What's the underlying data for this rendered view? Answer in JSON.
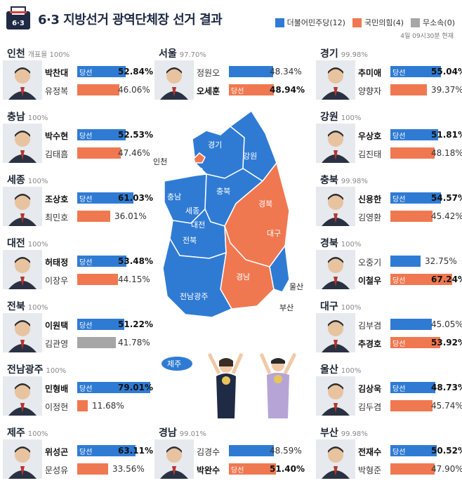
{
  "header": {
    "title": "6·3 지방선거 광역단체장 선거 결과",
    "icon_label": "6·3",
    "updated": "4일 09시30분 현재",
    "legend": [
      {
        "label": "더불어민주당(12)",
        "color": "#2f7bd4"
      },
      {
        "label": "국민의힘(4)",
        "color": "#f07850"
      },
      {
        "label": "무소속(0)",
        "color": "#a6a6a6"
      }
    ]
  },
  "won_label": "당선",
  "colors": {
    "dem": "#2f7bd4",
    "ppp": "#f07850",
    "ind": "#a6a6a6"
  },
  "regions": [
    {
      "name": "인천",
      "pct": "개표율 100%",
      "cands": [
        {
          "name": "박찬대",
          "party": "dem",
          "vote": 52.84,
          "vote_text": "52.84%",
          "won": true
        },
        {
          "name": "유정복",
          "party": "ppp",
          "vote": 46.06,
          "vote_text": "46.06%",
          "won": false
        }
      ]
    },
    {
      "name": "서울",
      "pct": "97.70%",
      "cands": [
        {
          "name": "정원오",
          "party": "dem",
          "vote": 48.34,
          "vote_text": "48.34%",
          "won": false
        },
        {
          "name": "오세훈",
          "party": "ppp",
          "vote": 48.94,
          "vote_text": "48.94%",
          "won": true
        }
      ]
    },
    {
      "name": "경기",
      "pct": "99.98%",
      "cands": [
        {
          "name": "추미애",
          "party": "dem",
          "vote": 55.04,
          "vote_text": "55.04%",
          "won": true
        },
        {
          "name": "양향자",
          "party": "ppp",
          "vote": 39.37,
          "vote_text": "39.37%",
          "won": false
        }
      ]
    },
    {
      "name": "충남",
      "pct": "100%",
      "cands": [
        {
          "name": "박수현",
          "party": "dem",
          "vote": 52.53,
          "vote_text": "52.53%",
          "won": true
        },
        {
          "name": "김태흠",
          "party": "ppp",
          "vote": 47.46,
          "vote_text": "47.46%",
          "won": false
        }
      ]
    },
    {
      "name": "강원",
      "pct": "100%",
      "cands": [
        {
          "name": "우상호",
          "party": "dem",
          "vote": 51.81,
          "vote_text": "51.81%",
          "won": true
        },
        {
          "name": "김진태",
          "party": "ppp",
          "vote": 48.18,
          "vote_text": "48.18%",
          "won": false
        }
      ]
    },
    {
      "name": "세종",
      "pct": "100%",
      "cands": [
        {
          "name": "조상호",
          "party": "dem",
          "vote": 61.03,
          "vote_text": "61.03%",
          "won": true
        },
        {
          "name": "최민호",
          "party": "ppp",
          "vote": 36.01,
          "vote_text": "36.01%",
          "won": false
        }
      ]
    },
    {
      "name": "충북",
      "pct": "99.98%",
      "cands": [
        {
          "name": "신용한",
          "party": "dem",
          "vote": 54.57,
          "vote_text": "54.57%",
          "won": true
        },
        {
          "name": "김영환",
          "party": "ppp",
          "vote": 45.42,
          "vote_text": "45.42%",
          "won": false
        }
      ]
    },
    {
      "name": "대전",
      "pct": "100%",
      "cands": [
        {
          "name": "허태정",
          "party": "dem",
          "vote": 53.48,
          "vote_text": "53.48%",
          "won": true
        },
        {
          "name": "이장우",
          "party": "ppp",
          "vote": 44.15,
          "vote_text": "44.15%",
          "won": false
        }
      ]
    },
    {
      "name": "경북",
      "pct": "100%",
      "cands": [
        {
          "name": "오중기",
          "party": "dem",
          "vote": 32.75,
          "vote_text": "32.75%",
          "won": false
        },
        {
          "name": "이철우",
          "party": "ppp",
          "vote": 67.24,
          "vote_text": "67.24%",
          "won": true
        }
      ]
    },
    {
      "name": "전북",
      "pct": "100%",
      "cands": [
        {
          "name": "이원택",
          "party": "dem",
          "vote": 51.22,
          "vote_text": "51.22%",
          "won": true
        },
        {
          "name": "김관영",
          "party": "ind",
          "vote": 41.78,
          "vote_text": "41.78%",
          "won": false
        }
      ]
    },
    {
      "name": "대구",
      "pct": "100%",
      "cands": [
        {
          "name": "김부겸",
          "party": "dem",
          "vote": 45.05,
          "vote_text": "45.05%",
          "won": false
        },
        {
          "name": "추경호",
          "party": "ppp",
          "vote": 53.92,
          "vote_text": "53.92%",
          "won": true
        }
      ]
    },
    {
      "name": "전남광주",
      "pct": "100%",
      "cands": [
        {
          "name": "민형배",
          "party": "dem",
          "vote": 79.01,
          "vote_text": "79.01%",
          "won": true
        },
        {
          "name": "이정현",
          "party": "ppp",
          "vote": 11.68,
          "vote_text": "11.68%",
          "won": false
        }
      ]
    },
    {
      "name": "울산",
      "pct": "100%",
      "cands": [
        {
          "name": "김상욱",
          "party": "dem",
          "vote": 48.73,
          "vote_text": "48.73%",
          "won": true
        },
        {
          "name": "김두겸",
          "party": "ppp",
          "vote": 45.74,
          "vote_text": "45.74%",
          "won": false
        }
      ]
    },
    {
      "name": "제주",
      "pct": "100%",
      "cands": [
        {
          "name": "위성곤",
          "party": "dem",
          "vote": 63.11,
          "vote_text": "63.11%",
          "won": true
        },
        {
          "name": "문성유",
          "party": "ppp",
          "vote": 33.56,
          "vote_text": "33.56%",
          "won": false
        }
      ]
    },
    {
      "name": "경남",
      "pct": "99.01%",
      "cands": [
        {
          "name": "김경수",
          "party": "dem",
          "vote": 48.59,
          "vote_text": "48.59%",
          "won": false
        },
        {
          "name": "박완수",
          "party": "ppp",
          "vote": 51.4,
          "vote_text": "51.40%",
          "won": true
        }
      ]
    },
    {
      "name": "부산",
      "pct": "99.98%",
      "cands": [
        {
          "name": "전재수",
          "party": "dem",
          "vote": 50.52,
          "vote_text": "50.52%",
          "won": true
        },
        {
          "name": "박형준",
          "party": "ppp",
          "vote": 47.9,
          "vote_text": "47.90%",
          "won": false
        }
      ]
    }
  ],
  "map_labels": [
    "경기",
    "서울",
    "인천",
    "강원",
    "충남",
    "세종",
    "충북",
    "대전",
    "경북",
    "대구",
    "전북",
    "경남",
    "울산",
    "부산",
    "전남광주",
    "제주"
  ],
  "chart_data": {
    "type": "bar",
    "title": "6·3 지방선거 광역단체장 선거 결과",
    "categories": [
      "인천",
      "서울",
      "경기",
      "충남",
      "강원",
      "세종",
      "충북",
      "대전",
      "경북",
      "전북",
      "대구",
      "전남광주",
      "울산",
      "제주",
      "경남",
      "부산"
    ],
    "series": [
      {
        "name": "더불어민주당",
        "values": [
          52.84,
          48.34,
          55.04,
          52.53,
          51.81,
          61.03,
          54.57,
          53.48,
          32.75,
          51.22,
          45.05,
          79.01,
          48.73,
          63.11,
          48.59,
          50.52
        ]
      },
      {
        "name": "국민의힘",
        "values": [
          46.06,
          48.94,
          39.37,
          47.46,
          48.18,
          36.01,
          45.42,
          44.15,
          67.24,
          null,
          53.92,
          11.68,
          45.74,
          33.56,
          51.4,
          47.9
        ]
      },
      {
        "name": "무소속",
        "values": [
          null,
          null,
          null,
          null,
          null,
          null,
          null,
          null,
          null,
          41.78,
          null,
          null,
          null,
          null,
          null,
          null
        ]
      }
    ],
    "seats": {
      "더불어민주당": 12,
      "국민의힘": 4,
      "무소속": 0
    }
  }
}
